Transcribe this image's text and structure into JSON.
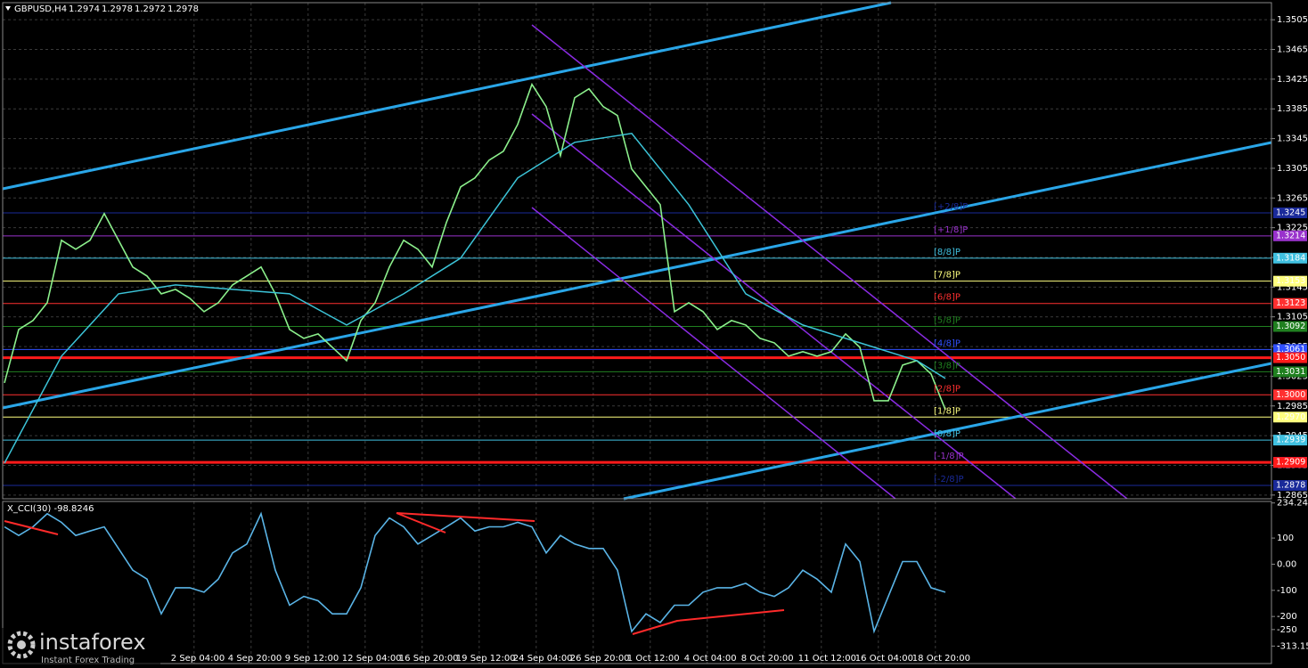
{
  "header": {
    "symbol": "GBPUSD,H4",
    "ohlc": [
      1.2974,
      1.2978,
      1.2972,
      1.2978
    ]
  },
  "watermark": {
    "brand": "instaforex",
    "tagline": "Instant Forex Trading"
  },
  "chart_data": [
    {
      "type": "line",
      "xlim": [
        -0.125,
        88.875
      ],
      "ylim": [
        1.286,
        1.3528
      ],
      "yticks": [
        1.3505,
        1.3465,
        1.3425,
        1.3385,
        1.3345,
        1.3305,
        1.3265,
        1.3225,
        1.3185,
        1.3145,
        1.3105,
        1.3065,
        1.3025,
        1.2985,
        1.2945,
        1.2905,
        1.2865
      ],
      "xticks": [
        {
          "value": 13.3,
          "label": "2 Sep 04:00"
        },
        {
          "value": 17.3,
          "label": "4 Sep 20:00"
        },
        {
          "value": 21.3,
          "label": "9 Sep 12:00"
        },
        {
          "value": 25.3,
          "label": "12 Sep 04:00"
        },
        {
          "value": 29.3,
          "label": "16 Sep 20:00"
        },
        {
          "value": 33.3,
          "label": "19 Sep 12:00"
        },
        {
          "value": 37.3,
          "label": "24 Sep 04:00"
        },
        {
          "value": 41.3,
          "label": "26 Sep 20:00"
        },
        {
          "value": 45.3,
          "label": "1 Oct 12:00"
        },
        {
          "value": 49.3,
          "label": "4 Oct 04:00"
        },
        {
          "value": 53.3,
          "label": "8 Oct 20:00"
        },
        {
          "value": 57.3,
          "label": "11 Oct 12:00"
        },
        {
          "value": 61.3,
          "label": "16 Oct 04:00"
        },
        {
          "value": 65.3,
          "label": "18 Oct 20:00"
        }
      ],
      "grid": true,
      "series": [
        {
          "color": "#8cf08c",
          "x": [
            0,
            1,
            2,
            3,
            4,
            5,
            6,
            7,
            8,
            9,
            10,
            11,
            12,
            13,
            14,
            15,
            16,
            17,
            18,
            19,
            20,
            21,
            22,
            23,
            24,
            25,
            26,
            27,
            28,
            29,
            30,
            31,
            32,
            33,
            34,
            35,
            36,
            37,
            38,
            39,
            40,
            41,
            42,
            43,
            44,
            45,
            46,
            47,
            48,
            49,
            50,
            51,
            52,
            53,
            54,
            55,
            56,
            57,
            58,
            59,
            60,
            61,
            62,
            63,
            64,
            65,
            66
          ],
          "values": [
            1.3016,
            1.3088,
            1.31,
            1.3124,
            1.3208,
            1.3196,
            1.3208,
            1.3244,
            1.3208,
            1.3172,
            1.316,
            1.3136,
            1.3142,
            1.313,
            1.3112,
            1.3124,
            1.3148,
            1.316,
            1.3172,
            1.3136,
            1.3088,
            1.3076,
            1.3082,
            1.3064,
            1.3046,
            1.31,
            1.3124,
            1.3172,
            1.3208,
            1.3196,
            1.3172,
            1.3232,
            1.328,
            1.3292,
            1.3316,
            1.3328,
            1.3364,
            1.3418,
            1.3388,
            1.3322,
            1.34,
            1.3412,
            1.3388,
            1.3376,
            1.3304,
            1.328,
            1.3256,
            1.3112,
            1.3124,
            1.3112,
            1.3088,
            1.31,
            1.3094,
            1.3076,
            1.307,
            1.3052,
            1.3058,
            1.3052,
            1.3058,
            1.3082,
            1.3064,
            1.2992,
            1.2992,
            1.304,
            1.3046,
            1.3028,
            1.298
          ]
        },
        {
          "color": "#3cc4d8",
          "x": [
            0,
            4,
            8,
            12,
            16,
            20,
            24,
            28,
            32,
            36,
            40,
            44,
            48,
            52,
            56,
            60,
            64,
            66
          ],
          "values": [
            1.2908,
            1.3052,
            1.3136,
            1.3148,
            1.3142,
            1.3136,
            1.3094,
            1.3136,
            1.3184,
            1.3292,
            1.334,
            1.3352,
            1.3256,
            1.3136,
            1.3094,
            1.307,
            1.3046,
            1.3022
          ]
        }
      ],
      "levels": [
        {
          "tag": "[+2/8]P",
          "value": 1.3245,
          "label": "1.3245",
          "color": "#1a2a9a"
        },
        {
          "tag": "[+1/8]P",
          "value": 1.3214,
          "label": "1.3214",
          "color": "#9932cc"
        },
        {
          "tag": "[8/8]P",
          "value": 1.3184,
          "label": "1.3184",
          "color": "#40c0e0"
        },
        {
          "tag": "[7/8]P",
          "value": 1.3153,
          "label": "1.3153",
          "color": "#ffff80"
        },
        {
          "tag": "[6/8]P",
          "value": 1.3123,
          "label": "1.3123",
          "color": "#ff3030"
        },
        {
          "tag": "[5/8]P",
          "value": 1.3092,
          "label": "1.3092",
          "color": "#208020"
        },
        {
          "tag": "[4/8]P",
          "value": 1.3061,
          "label": "1.3061",
          "color": "#3050ff"
        },
        {
          "tag": "[3/8]P",
          "value": 1.3031,
          "label": "1.3031",
          "color": "#208020"
        },
        {
          "tag": "[2/8]P",
          "value": 1.3,
          "label": "1.3000",
          "color": "#ff3030"
        },
        {
          "tag": "[1/8]P",
          "value": 1.297,
          "label": "1.2970",
          "color": "#ffff80"
        },
        {
          "tag": "[0/8]P",
          "value": 1.2939,
          "label": "1.2939",
          "color": "#40c0e0"
        },
        {
          "tag": "[-1/8]P",
          "value": 1.2909,
          "label": "1.2909",
          "color": "#9932cc"
        },
        {
          "tag": "[-2/8]P",
          "value": 1.2878,
          "label": "1.2878",
          "color": "#1a2a9a"
        }
      ],
      "key_levels": [
        {
          "value": 1.305,
          "label": "1.3050",
          "color": "#ff1a1a"
        },
        {
          "value": 1.2909,
          "label": "1.2909",
          "color": "#ff1a1a"
        }
      ]
    },
    {
      "type": "line",
      "title": "X_CCI(30) -98.8246",
      "xlim": [
        -0.125,
        88.875
      ],
      "ylim": [
        -380,
        240
      ],
      "yticks": [
        234.2406,
        100,
        {
          "value": 0,
          "label": "0.00"
        },
        -100,
        -200,
        -250,
        -313.1511
      ],
      "series": [
        {
          "color": "#5ab4e6",
          "x": [
            0,
            1,
            2,
            3,
            4,
            5,
            6,
            7,
            8,
            9,
            10,
            11,
            12,
            13,
            14,
            15,
            16,
            17,
            18,
            19,
            20,
            21,
            22,
            23,
            24,
            25,
            26,
            27,
            28,
            29,
            30,
            31,
            32,
            33,
            34,
            35,
            36,
            37,
            38,
            39,
            40,
            41,
            42,
            43,
            44,
            45,
            46,
            47,
            48,
            49,
            50,
            51,
            52,
            53,
            54,
            55,
            56,
            57,
            58,
            59,
            60,
            61,
            62,
            63,
            64,
            65,
            66
          ],
          "values": [
            143,
            110,
            143,
            193,
            160,
            110,
            127,
            143,
            60,
            -23,
            -57,
            -190,
            -90,
            -90,
            -107,
            -57,
            43,
            77,
            193,
            -23,
            -157,
            -123,
            -140,
            -190,
            -190,
            -90,
            110,
            177,
            143,
            77,
            110,
            143,
            177,
            127,
            143,
            143,
            160,
            143,
            43,
            110,
            77,
            60,
            60,
            -23,
            -257,
            -190,
            -223,
            -157,
            -157,
            -107,
            -90,
            -90,
            -73,
            -107,
            -123,
            -90,
            -23,
            -57,
            -107,
            77,
            10,
            -257,
            -123,
            10,
            10,
            -90,
            -107
          ]
        }
      ]
    }
  ]
}
